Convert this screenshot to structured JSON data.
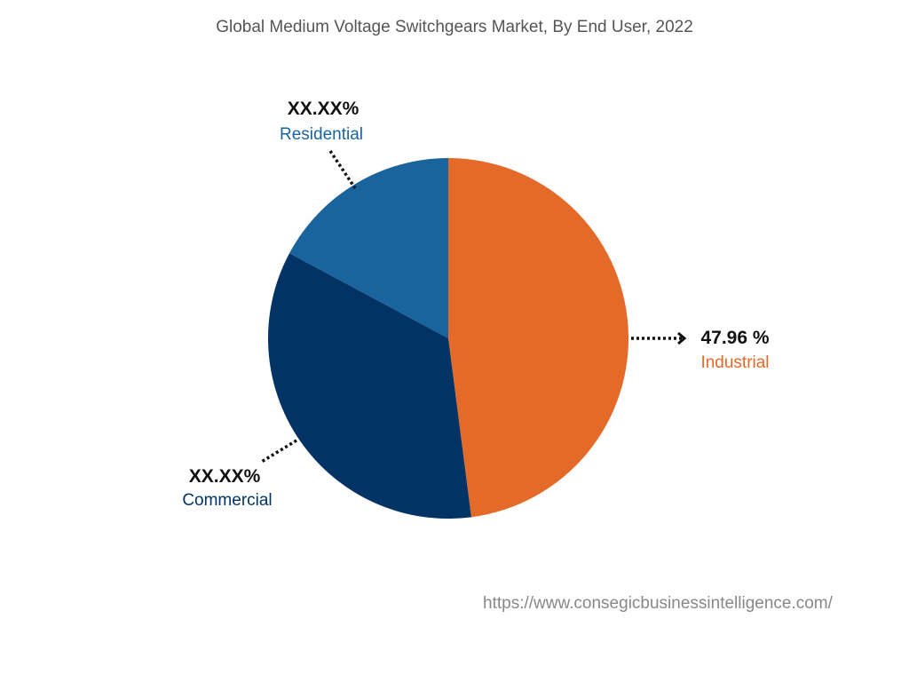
{
  "chart_data": {
    "type": "pie",
    "title": "Global Medium Voltage Switchgears Market, By End User, 2022",
    "slices": [
      {
        "name": "Industrial",
        "value": 47.96,
        "label": "47.96 %",
        "color": "#E46A2A"
      },
      {
        "name": "Commercial",
        "value": 34.87,
        "label": "XX.XX%",
        "color": "#023365"
      },
      {
        "name": "Residential",
        "value": 17.17,
        "label": "XX.XX%",
        "color": "#1A649E"
      }
    ],
    "start": "top, clockwise",
    "legend": "none"
  },
  "source_url": "https://www.consegicbusinessintelligence.com/"
}
